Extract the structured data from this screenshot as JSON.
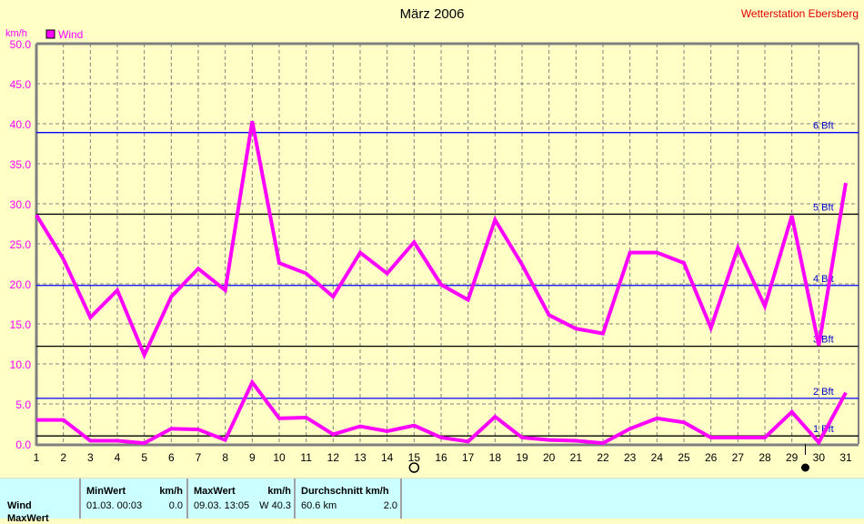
{
  "header": {
    "title": "März 2006",
    "station": "Wetterstation Ebersberg"
  },
  "chart_data": {
    "type": "line",
    "title": "März 2006",
    "ylabel": "km/h",
    "ylim": [
      0,
      50
    ],
    "yticks": [
      "0.0",
      "5.0",
      "10.0",
      "15.0",
      "20.0",
      "25.0",
      "30.0",
      "35.0",
      "40.0",
      "45.0",
      "50.0"
    ],
    "x": [
      1,
      2,
      3,
      4,
      5,
      6,
      7,
      8,
      9,
      10,
      11,
      12,
      13,
      14,
      15,
      16,
      17,
      18,
      19,
      20,
      21,
      22,
      23,
      24,
      25,
      26,
      27,
      28,
      29,
      30,
      31
    ],
    "grid": true,
    "legend": {
      "position": "top-left",
      "entries": [
        "Wind"
      ]
    },
    "series": [
      {
        "name": "Wind",
        "color": "#ff00ff",
        "values": [
          28.6,
          23.1,
          15.8,
          19.2,
          11.1,
          18.4,
          21.9,
          19.2,
          40.3,
          22.6,
          21.3,
          18.4,
          23.9,
          21.3,
          25.2,
          19.9,
          18.0,
          28.0,
          22.4,
          16.1,
          14.4,
          13.8,
          23.9,
          23.9,
          22.6,
          14.5,
          24.5,
          17.2,
          28.5,
          12.3,
          32.6
        ]
      },
      {
        "color": "#ff00ff",
        "values": [
          3.0,
          3.0,
          0.4,
          0.4,
          0.1,
          1.9,
          1.8,
          0.5,
          7.7,
          3.2,
          3.3,
          1.2,
          2.2,
          1.6,
          2.3,
          0.8,
          0.3,
          3.4,
          0.8,
          0.5,
          0.4,
          0.1,
          1.9,
          3.2,
          2.7,
          0.8,
          0.8,
          0.8,
          4.0,
          0.2,
          6.4
        ]
      }
    ],
    "reference_lines": [
      {
        "label": "1 Bft",
        "value": 1.0,
        "color": "#000000"
      },
      {
        "label": "2 Bft",
        "value": 5.7,
        "color": "#0000ff"
      },
      {
        "label": "3 Bft",
        "value": 12.2,
        "color": "#000000"
      },
      {
        "label": "4 Bft",
        "value": 19.8,
        "color": "#0000ff"
      },
      {
        "label": "5 Bft",
        "value": 28.7,
        "color": "#000000"
      },
      {
        "label": "6 Bft",
        "value": 38.9,
        "color": "#0000ff"
      }
    ],
    "moon_phases": [
      {
        "day": 15,
        "phase": "full-moon"
      },
      {
        "day": 29.5,
        "phase": "new-moon"
      }
    ]
  },
  "table": {
    "row_label": "Wind",
    "next_row_label": "MaxWert",
    "min": {
      "header": "MinWert",
      "unit": "km/h",
      "date": "01.03.  00:03",
      "value": "0.0"
    },
    "max": {
      "header": "MaxWert",
      "unit": "km/h",
      "date": "09.03.  13:05",
      "value": "W 40.3"
    },
    "avg": {
      "header": "Durchschnitt km/h",
      "distance": "60.6 km",
      "value": "2.0"
    }
  }
}
